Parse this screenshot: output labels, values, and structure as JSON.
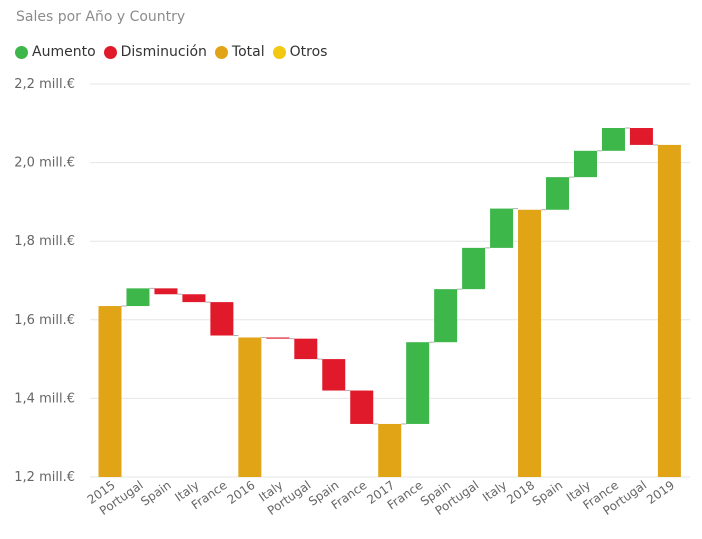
{
  "colors": {
    "increase": "#3DB64A",
    "decrease": "#E01A2B",
    "total": "#E2A417",
    "other": "#F2C811",
    "grid": "#e6e6e6",
    "connector": "#b0b0b0"
  },
  "chart_data": {
    "type": "waterfall",
    "title": "Sales por Año y Country",
    "legend": [
      {
        "label": "Aumento",
        "color_key": "increase"
      },
      {
        "label": "Disminución",
        "color_key": "decrease"
      },
      {
        "label": "Total",
        "color_key": "total"
      },
      {
        "label": "Otros",
        "color_key": "other"
      }
    ],
    "legend_position": "top-left",
    "grid": true,
    "ylim": [
      1.2,
      2.2
    ],
    "y_ticks": [
      {
        "value": 2.2,
        "label": "2,2 mill.€"
      },
      {
        "value": 2.0,
        "label": "2,0 mill.€"
      },
      {
        "value": 1.8,
        "label": "1,8 mill.€"
      },
      {
        "value": 1.6,
        "label": "1,6 mill.€"
      },
      {
        "value": 1.4,
        "label": "1,4 mill.€"
      },
      {
        "value": 1.2,
        "label": "1,2 mill.€"
      }
    ],
    "y_unit": "mill.€",
    "categories": [
      "2015",
      "Portugal",
      "Spain",
      "Italy",
      "France",
      "2016",
      "Italy",
      "Portugal",
      "Spain",
      "France",
      "2017",
      "France",
      "Spain",
      "Portugal",
      "Italy",
      "2018",
      "Spain",
      "Italy",
      "France",
      "Portugal",
      "2019"
    ],
    "bars": [
      {
        "category": "2015",
        "kind": "total",
        "value": 1.635
      },
      {
        "category": "Portugal",
        "kind": "change",
        "value": 0.045
      },
      {
        "category": "Spain",
        "kind": "change",
        "value": -0.015
      },
      {
        "category": "Italy",
        "kind": "change",
        "value": -0.02
      },
      {
        "category": "France",
        "kind": "change",
        "value": -0.085
      },
      {
        "category": "2016",
        "kind": "total",
        "value": 1.555
      },
      {
        "category": "Italy",
        "kind": "change",
        "value": -0.003
      },
      {
        "category": "Portugal",
        "kind": "change",
        "value": -0.052
      },
      {
        "category": "Spain",
        "kind": "change",
        "value": -0.08
      },
      {
        "category": "France",
        "kind": "change",
        "value": -0.085
      },
      {
        "category": "2017",
        "kind": "total",
        "value": 1.335
      },
      {
        "category": "France",
        "kind": "change",
        "value": 0.208
      },
      {
        "category": "Spain",
        "kind": "change",
        "value": 0.135
      },
      {
        "category": "Portugal",
        "kind": "change",
        "value": 0.105
      },
      {
        "category": "Italy",
        "kind": "change",
        "value": 0.1
      },
      {
        "category": "2018",
        "kind": "total",
        "value": 1.88
      },
      {
        "category": "Spain",
        "kind": "change",
        "value": 0.083
      },
      {
        "category": "Italy",
        "kind": "change",
        "value": 0.067
      },
      {
        "category": "France",
        "kind": "change",
        "value": 0.058
      },
      {
        "category": "Portugal",
        "kind": "change",
        "value": -0.043
      },
      {
        "category": "2019",
        "kind": "total",
        "value": 2.045
      }
    ]
  }
}
